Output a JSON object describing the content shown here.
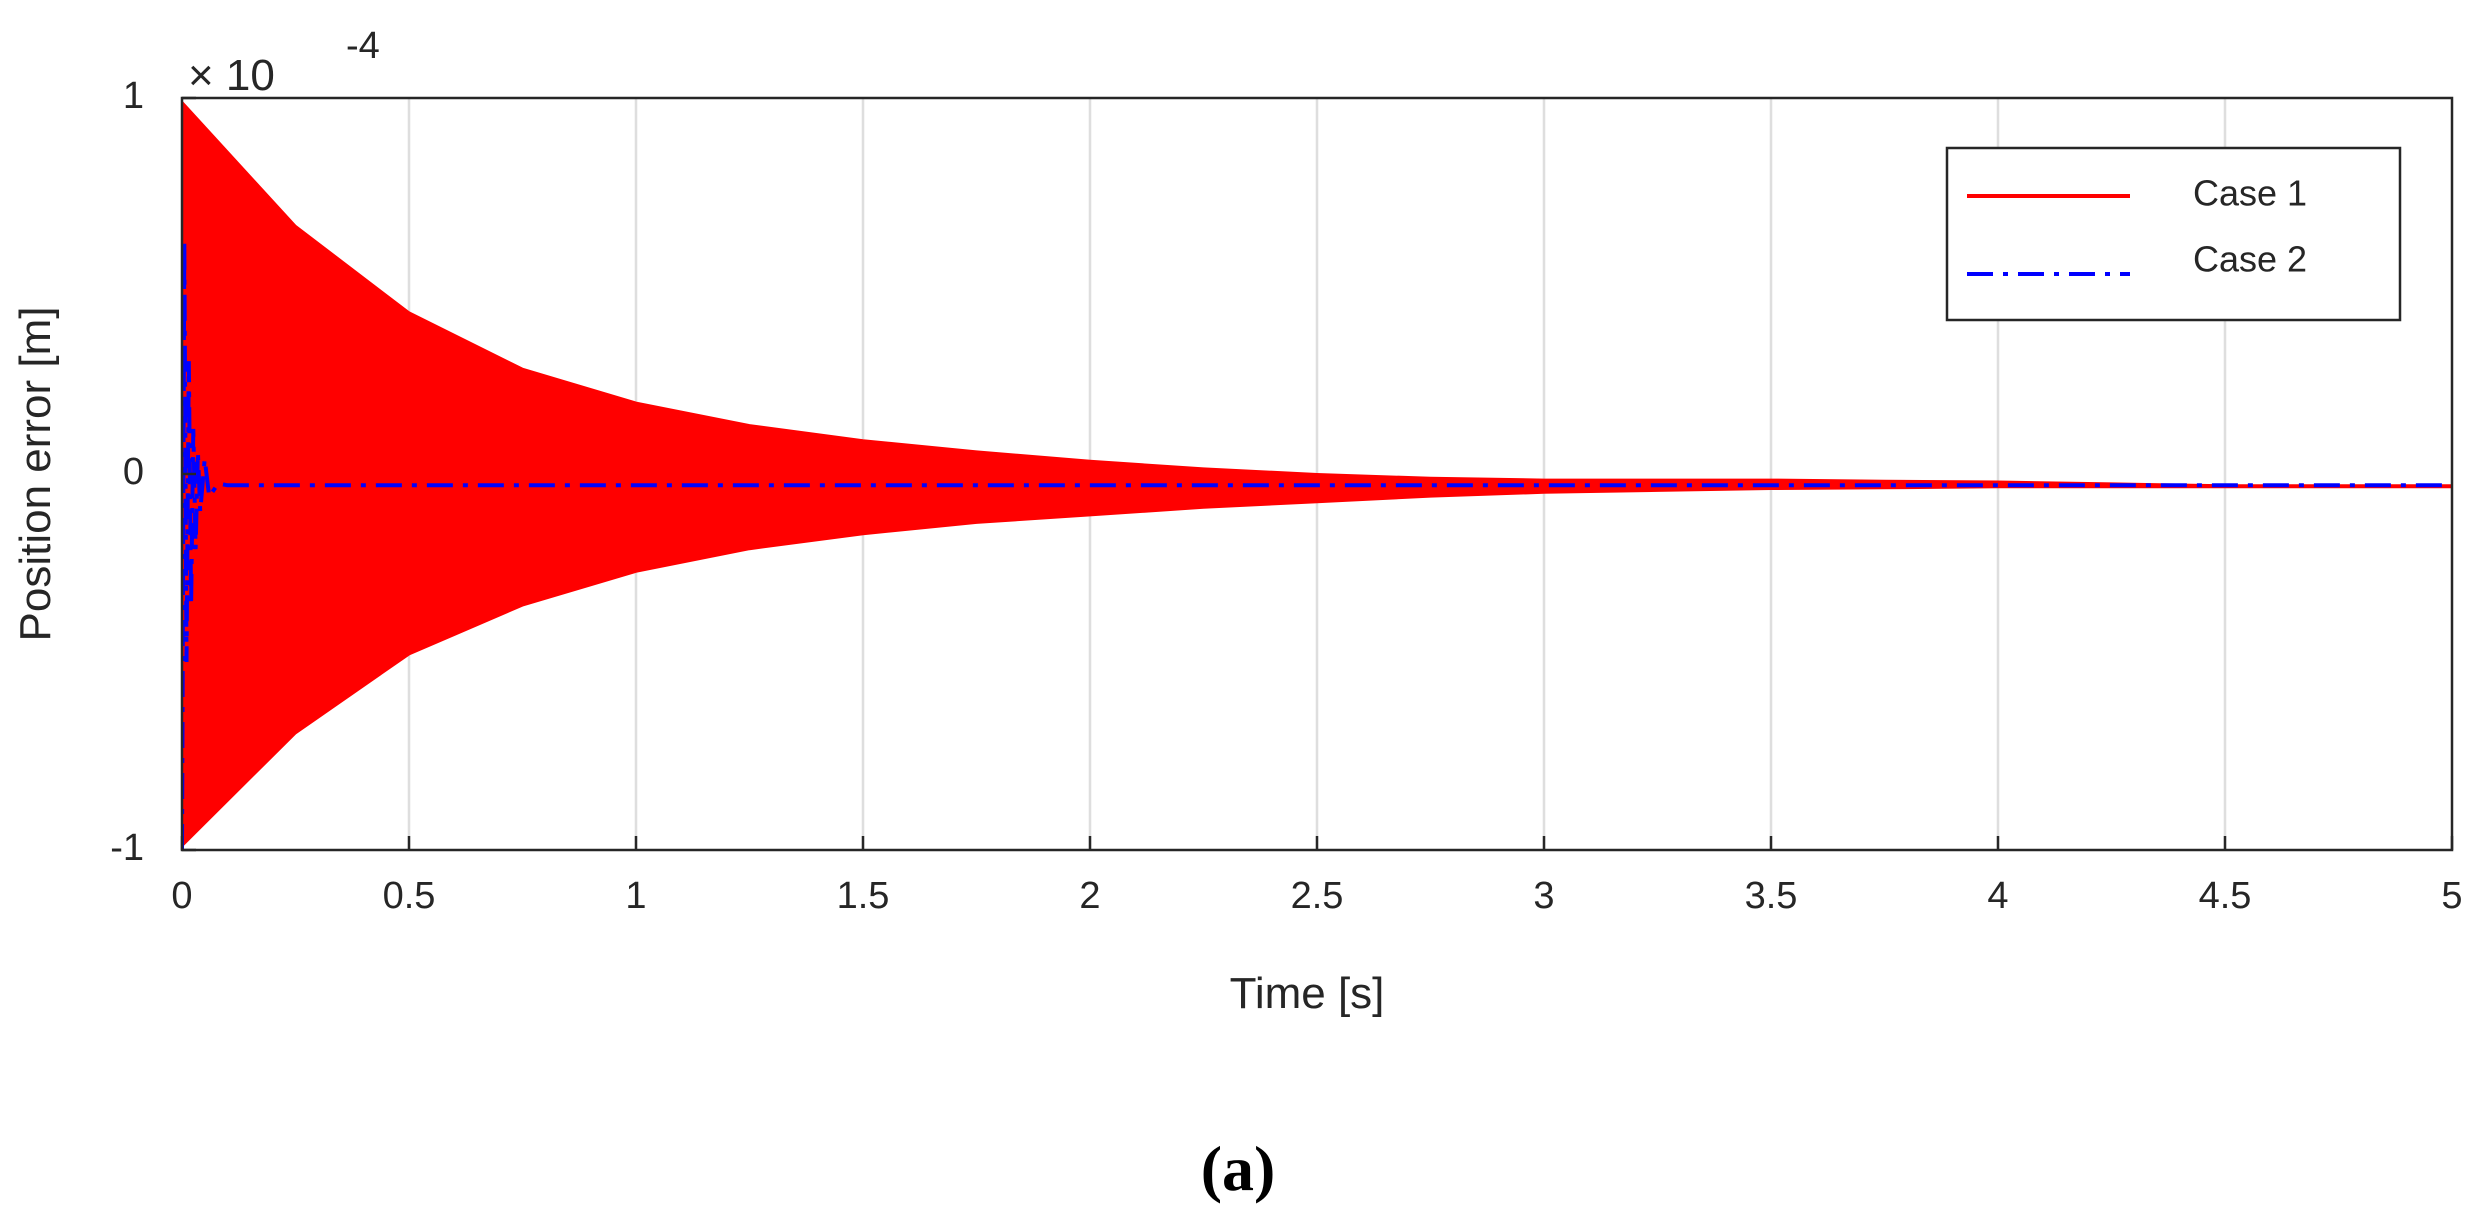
{
  "chart_data": {
    "type": "line",
    "title": "",
    "xlabel": "Time [s]",
    "ylabel": "Position error [m]",
    "xlim": [
      0,
      5
    ],
    "ylim": [
      -1,
      1
    ],
    "y_exponent_label": "× 10",
    "y_exponent_power": "-4",
    "x_ticks": [
      "0",
      "0.5",
      "1",
      "1.5",
      "2",
      "2.5",
      "3",
      "3.5",
      "4",
      "4.5",
      "5"
    ],
    "y_ticks": [
      "-1",
      "0",
      "1"
    ],
    "grid": "vertical",
    "legend_position": "top-right",
    "panel_label": "(a)",
    "series": [
      {
        "name": "Case 1",
        "color": "#ff0000",
        "style": "solid",
        "kind": "decaying-oscillation-envelope",
        "time": [
          0,
          0.25,
          0.5,
          0.75,
          1,
          1.25,
          1.5,
          1.75,
          2,
          2.25,
          2.5,
          2.75,
          3,
          3.25,
          3.5,
          3.75,
          4,
          4.25,
          4.5,
          4.75,
          5
        ],
        "upper": [
          0.99,
          0.66,
          0.43,
          0.28,
          0.19,
          0.13,
          0.09,
          0.06,
          0.035,
          0.015,
          0.0,
          -0.01,
          -0.015,
          -0.015,
          -0.015,
          -0.018,
          -0.02,
          -0.025,
          -0.03,
          -0.03,
          -0.03
        ],
        "lower": [
          -0.99,
          -0.69,
          -0.48,
          -0.35,
          -0.26,
          -0.2,
          -0.16,
          -0.13,
          -0.11,
          -0.09,
          -0.075,
          -0.06,
          -0.05,
          -0.045,
          -0.04,
          -0.038,
          -0.035,
          -0.035,
          -0.035,
          -0.035,
          -0.035
        ]
      },
      {
        "name": "Case 2",
        "color": "#0000ff",
        "style": "dash-dot",
        "kind": "line",
        "time": [
          0,
          0.005,
          0.01,
          0.015,
          0.02,
          0.025,
          0.03,
          0.035,
          0.04,
          0.05,
          0.06,
          0.08,
          0.1,
          0.5,
          1,
          2,
          3,
          4,
          5
        ],
        "values": [
          -1,
          0.62,
          -0.5,
          0.3,
          -0.35,
          0.12,
          -0.2,
          0.06,
          -0.1,
          0.04,
          -0.06,
          -0.025,
          -0.03,
          -0.03,
          -0.03,
          -0.03,
          -0.03,
          -0.03,
          -0.03
        ]
      }
    ]
  }
}
